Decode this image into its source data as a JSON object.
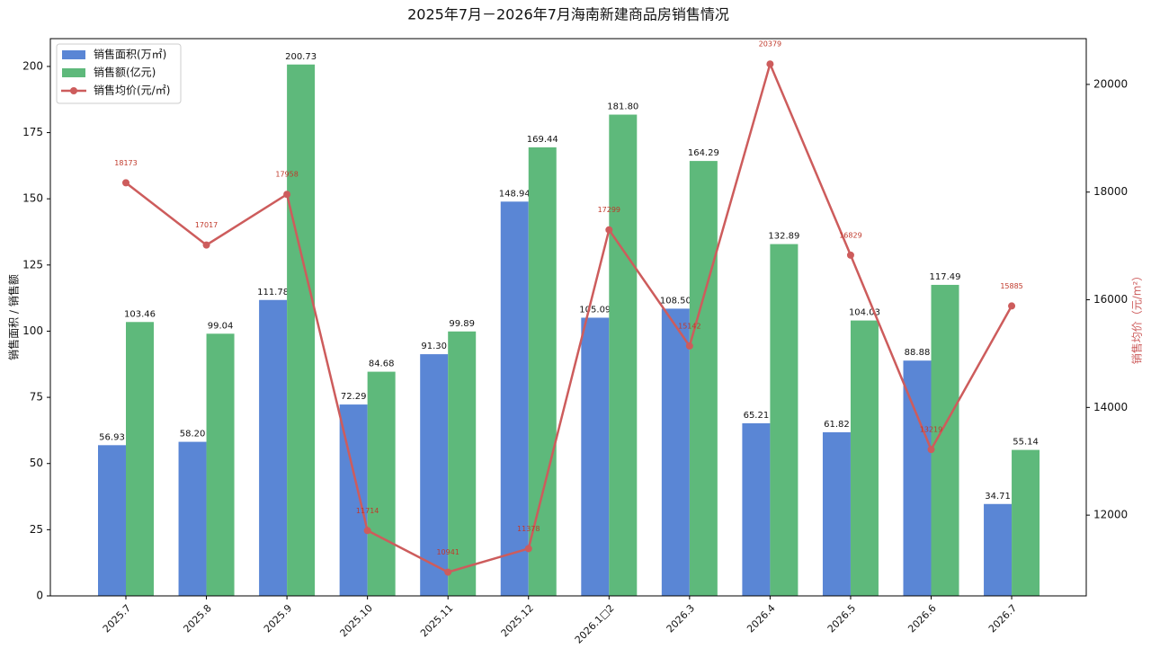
{
  "chart_data": {
    "type": "bar_line",
    "title": "2025年7月－2026年7月海南新建商品房销售情况",
    "y_label": "销售面积 / 销售额",
    "y2_label": "销售均价（元/m²）",
    "categories": [
      "2025.7",
      "2025.8",
      "2025.9",
      "2025.10",
      "2025.11",
      "2025.12",
      "2026.1□2",
      "2026.3",
      "2026.4",
      "2026.5",
      "2026.6",
      "2026.7"
    ],
    "series": [
      {
        "name": "销售面积(万㎡)",
        "type": "bar",
        "color": "#5a86d5",
        "values": [
          56.93,
          58.2,
          111.78,
          72.29,
          91.3,
          148.94,
          105.09,
          108.5,
          65.21,
          61.82,
          88.88,
          34.71
        ],
        "value_labels": [
          "56.93",
          "58.20",
          "111.78",
          "72.29",
          "91.30",
          "148.94",
          "105.09",
          "108.50",
          "65.21",
          "61.82",
          "88.88",
          "34.71"
        ]
      },
      {
        "name": "销售额(亿元)",
        "type": "bar",
        "color": "#5eb97b",
        "values": [
          103.46,
          99.04,
          200.73,
          84.68,
          99.89,
          169.44,
          181.8,
          164.29,
          132.89,
          104.03,
          117.49,
          55.14
        ],
        "value_labels": [
          "103.46",
          "99.04",
          "200.73",
          "84.68",
          "99.89",
          "169.44",
          "181.80",
          "164.29",
          "132.89",
          "104.03",
          "117.49",
          "55.14"
        ]
      },
      {
        "name": "销售均价(元/㎡)",
        "type": "line",
        "axis": "y2",
        "color": "#cd5c5c",
        "values": [
          18173,
          17017,
          17958,
          11714,
          10941,
          11378,
          17299,
          15142,
          20379,
          16829,
          13219,
          15885
        ]
      }
    ],
    "ylim": [
      0,
      210.5
    ],
    "yticks": [
      0,
      25,
      50,
      75,
      100,
      125,
      150,
      175,
      200
    ],
    "y2lim": [
      10500,
      20850
    ],
    "y2ticks": [
      12000,
      14000,
      16000,
      18000,
      20000
    ],
    "legend": "upper left"
  }
}
